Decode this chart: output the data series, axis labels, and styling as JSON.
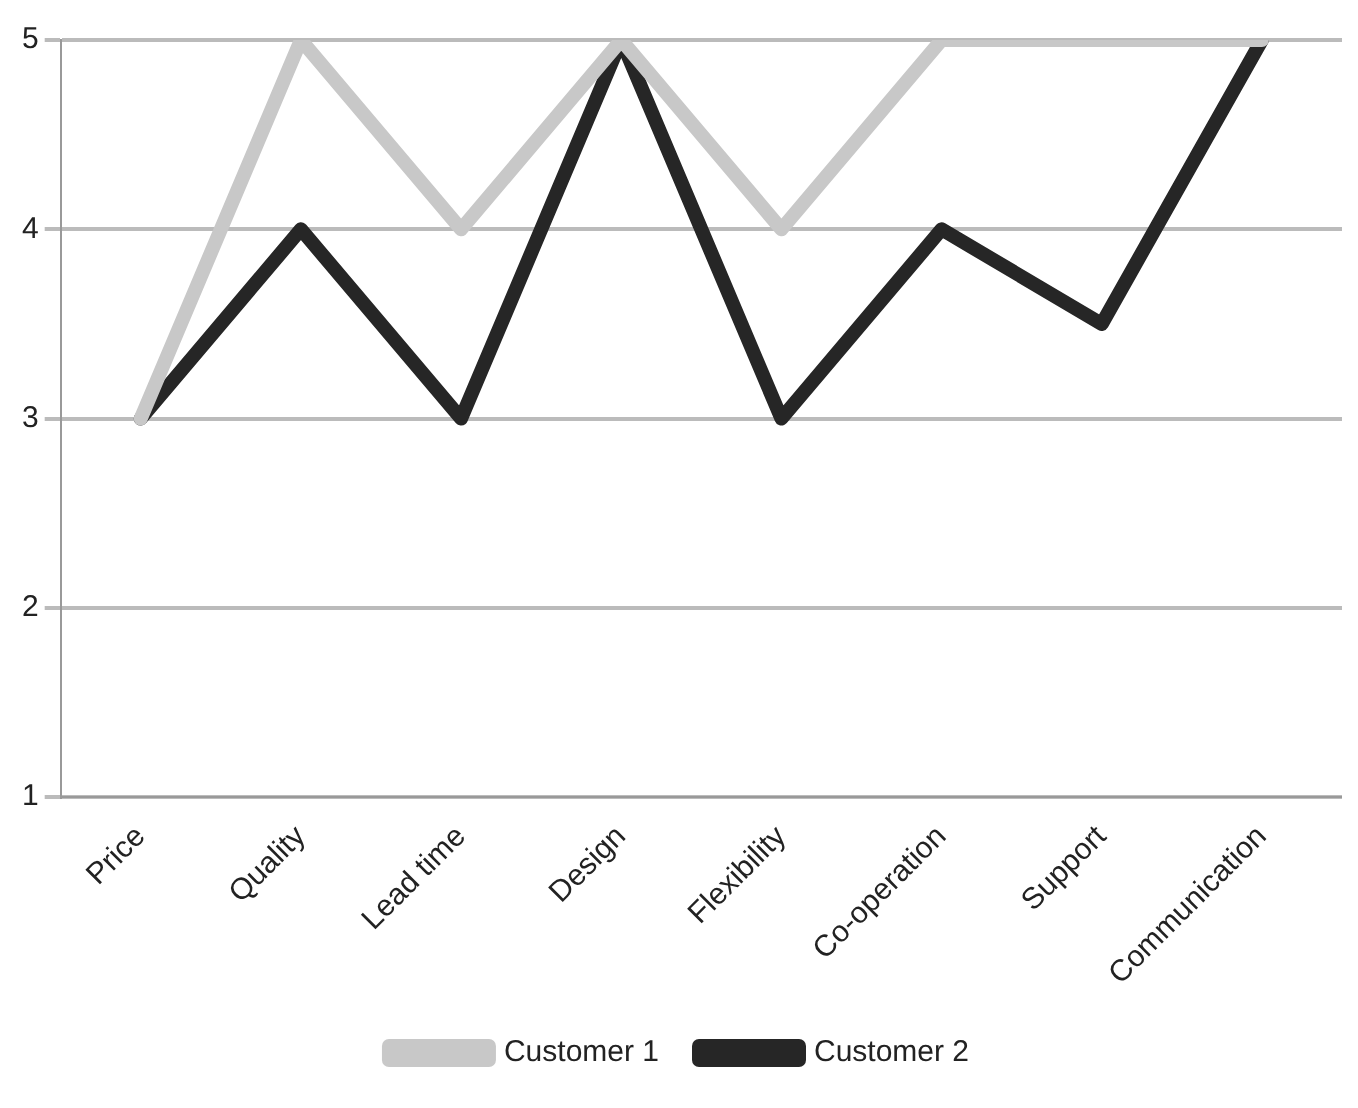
{
  "chart_data": {
    "type": "line",
    "categories": [
      "Price",
      "Quality",
      "Lead time",
      "Design",
      "Flexibility",
      "Co-operation",
      "Support",
      "Communication"
    ],
    "series": [
      {
        "name": "Customer 1",
        "color": "#c8c8c8",
        "values": [
          3,
          5,
          4,
          5,
          4,
          5,
          5,
          5
        ]
      },
      {
        "name": "Customer 2",
        "color": "#262626",
        "values": [
          3,
          4,
          3,
          5,
          3,
          4,
          3.5,
          5
        ]
      }
    ],
    "ylim": [
      1,
      5
    ],
    "yticks": [
      1,
      2,
      3,
      4,
      5
    ],
    "grid": "y",
    "legend": "bottom",
    "marker": "none",
    "line_style": "solid"
  }
}
